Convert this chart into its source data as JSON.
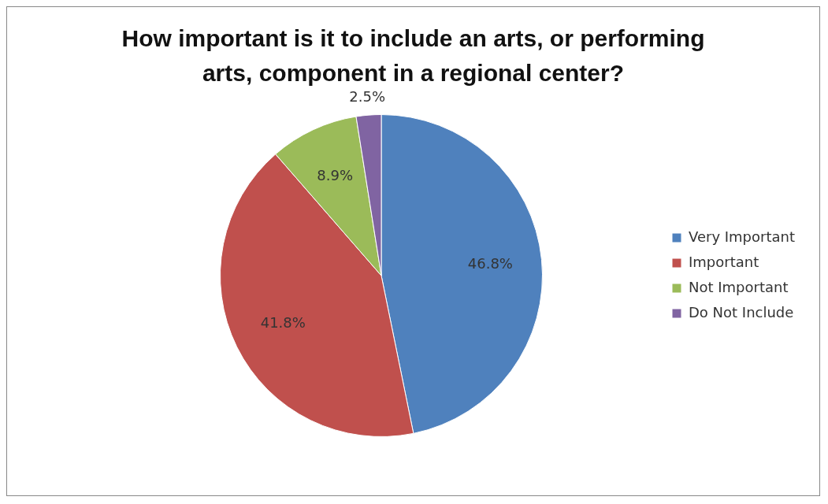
{
  "chart_data": {
    "type": "pie",
    "title": "How important is it to include an arts, or performing arts, component in a regional center?",
    "categories": [
      "Very Important",
      "Important",
      "Not Important",
      "Do Not Include"
    ],
    "values": [
      46.8,
      41.8,
      8.9,
      2.5
    ],
    "colors": [
      "#4f81bd",
      "#c0504d",
      "#9bbb59",
      "#8064a2"
    ],
    "value_labels": [
      "46.8%",
      "41.8%",
      "8.9%",
      "2.5%"
    ],
    "legend": "right"
  }
}
